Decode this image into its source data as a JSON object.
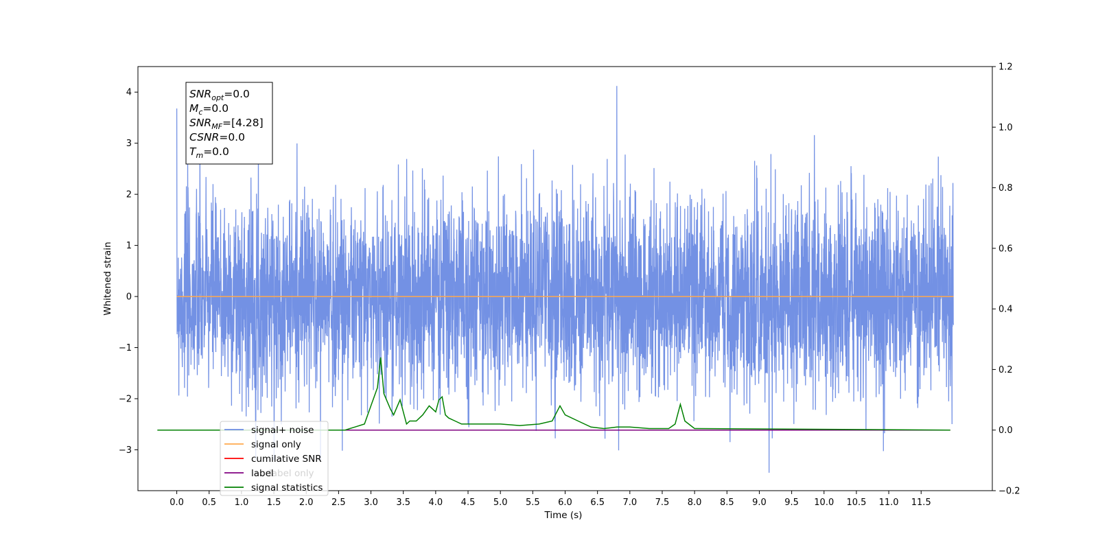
{
  "chart_data": {
    "type": "line",
    "title": "",
    "xlabel": "Time (s)",
    "ylabel": "Whitened strain",
    "ylabel_right": "",
    "xlim": [
      -0.6,
      12.6
    ],
    "ylim": [
      -3.8,
      4.5
    ],
    "ylim_right": [
      -0.2,
      1.2
    ],
    "x_ticks": [
      0.0,
      0.5,
      1.0,
      1.5,
      2.0,
      2.5,
      3.0,
      3.5,
      4.0,
      4.5,
      5.0,
      5.5,
      6.0,
      6.5,
      7.0,
      7.5,
      8.0,
      8.5,
      9.0,
      9.5,
      10.0,
      10.5,
      11.0,
      11.5
    ],
    "x_tick_labels": [
      "0.0",
      "0.5",
      "1.0",
      "1.5",
      "2.0",
      "2.5",
      "3.0",
      "3.5",
      "4.0",
      "4.5",
      "5.0",
      "5.5",
      "6.0",
      "6.5",
      "7.0",
      "7.5",
      "8.0",
      "8.5",
      "9.0",
      "9.5",
      "10.0",
      "10.5",
      "11.0",
      "11.5"
    ],
    "y_ticks": [
      -3,
      -2,
      -1,
      0,
      1,
      2,
      3,
      4
    ],
    "y_tick_labels": [
      "−3",
      "−2",
      "−1",
      "0",
      "1",
      "2",
      "3",
      "4"
    ],
    "y_right_ticks": [
      -0.2,
      0.0,
      0.2,
      0.4,
      0.6,
      0.8,
      1.0,
      1.2
    ],
    "y_right_tick_labels": [
      "−0.2",
      "0.0",
      "0.2",
      "0.4",
      "0.6",
      "0.8",
      "1.0",
      "1.2"
    ],
    "grid": false,
    "legend_position": "lower-left",
    "series": [
      {
        "name": "signal+ noise",
        "color": "#6b8be3",
        "axis": "left",
        "x_range": [
          0.0,
          12.0
        ],
        "spread": 1.6,
        "peak": {
          "x": 6.8,
          "y": 4.12
        },
        "trough": {
          "x": 9.15,
          "y": -3.45
        }
      },
      {
        "name": "signal only",
        "color": "#ffa94d",
        "axis": "left",
        "x": [
          0.0,
          12.0
        ],
        "y": [
          0.0,
          0.0
        ]
      },
      {
        "name": "cumilative SNR",
        "color": "#ff0000",
        "axis": "right",
        "x": [
          0.0,
          11.95
        ],
        "y": [
          0.0,
          0.0
        ]
      },
      {
        "name": "label",
        "color": "#800080",
        "axis": "right",
        "x": [
          0.0,
          11.95
        ],
        "y": [
          0.0,
          0.0
        ]
      },
      {
        "name": "signal statistics",
        "color": "#008000",
        "axis": "right",
        "x": [
          -0.3,
          2.3,
          2.6,
          2.75,
          2.9,
          3.0,
          3.1,
          3.15,
          3.2,
          3.3,
          3.35,
          3.45,
          3.55,
          3.6,
          3.7,
          3.8,
          3.9,
          4.0,
          4.05,
          4.1,
          4.15,
          4.2,
          4.3,
          4.4,
          4.6,
          5.0,
          5.3,
          5.6,
          5.8,
          5.92,
          6.0,
          6.2,
          6.4,
          6.6,
          6.8,
          7.0,
          7.3,
          7.6,
          7.7,
          7.78,
          7.85,
          8.0,
          11.95
        ],
        "y": [
          0.0,
          0.0,
          0.0,
          0.01,
          0.02,
          0.08,
          0.14,
          0.24,
          0.12,
          0.07,
          0.05,
          0.1,
          0.02,
          0.03,
          0.03,
          0.05,
          0.08,
          0.06,
          0.1,
          0.11,
          0.05,
          0.04,
          0.03,
          0.02,
          0.02,
          0.02,
          0.015,
          0.02,
          0.03,
          0.08,
          0.05,
          0.03,
          0.01,
          0.005,
          0.01,
          0.01,
          0.005,
          0.005,
          0.02,
          0.085,
          0.03,
          0.005,
          0.0
        ]
      }
    ],
    "info_box": {
      "lines": [
        {
          "sym": "SNR",
          "sub": "opt",
          "val": "=0.0"
        },
        {
          "sym": "M",
          "sub": "c",
          "val": "=0.0"
        },
        {
          "sym": "SNR",
          "sub": "MF",
          "val": "=[4.28]"
        },
        {
          "sym": "CSNR",
          "sub": "",
          "val": "=0.0"
        },
        {
          "sym": "T",
          "sub": "m",
          "val": "=0.0"
        }
      ]
    },
    "legend": [
      "signal+ noise",
      "signal only",
      "cumilative SNR",
      "label",
      "signal statistics"
    ],
    "hidden_legend_entry": "label only"
  }
}
